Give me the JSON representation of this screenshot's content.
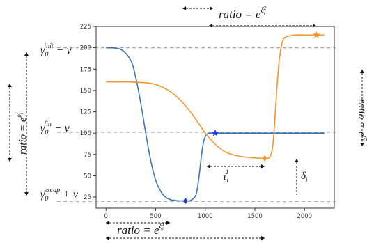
{
  "chart_data": {
    "type": "line",
    "xlim": [
      -100,
      2300
    ],
    "ylim": [
      12,
      225
    ],
    "x_ticks": [
      "0",
      "500",
      "1000",
      "1500",
      "2000"
    ],
    "y_ticks": [
      "25",
      "50",
      "75",
      "100",
      "125",
      "150",
      "175",
      "200",
      "225"
    ],
    "x_tick_values": [
      0,
      500,
      1000,
      1500,
      2000
    ],
    "y_tick_values": [
      25,
      50,
      75,
      100,
      125,
      150,
      175,
      200,
      225
    ],
    "grid": false,
    "reference_lines": [
      200,
      101,
      20
    ],
    "series": [
      {
        "color": "#3b76b6",
        "x": [
          0,
          150,
          250,
          300,
          350,
          400,
          450,
          500,
          550,
          600,
          650,
          700,
          750,
          800,
          850,
          900,
          920,
          940,
          960,
          980,
          1000,
          1020,
          1050,
          1100,
          1200,
          1500,
          1800,
          2000,
          2200
        ],
        "y": [
          200,
          198,
          185,
          165,
          135,
          100,
          68,
          45,
          32,
          25,
          22,
          21,
          20.5,
          20.5,
          21,
          26,
          35,
          52,
          72,
          88,
          96,
          99,
          100,
          100,
          100,
          100,
          100,
          100,
          100
        ]
      },
      {
        "color": "#f5962f",
        "x": [
          0,
          200,
          400,
          500,
          600,
          700,
          800,
          900,
          1000,
          1100,
          1200,
          1300,
          1400,
          1500,
          1600,
          1650,
          1680,
          1700,
          1720,
          1740,
          1760,
          1780,
          1800,
          1850,
          1900,
          2000,
          2200
        ],
        "y": [
          160,
          160,
          159,
          157,
          152,
          144,
          132,
          117,
          100,
          87,
          78,
          74,
          72,
          71,
          70.5,
          72,
          85,
          115,
          150,
          180,
          198,
          208,
          212,
          214,
          215,
          215,
          215
        ]
      }
    ],
    "markers": [
      {
        "x": 800,
        "y": 20.5,
        "color": "#1f3fbf",
        "shape": "diamond"
      },
      {
        "x": 1100,
        "y": 100,
        "color": "#1f33ff",
        "shape": "star"
      },
      {
        "x": 1600,
        "y": 70.5,
        "color": "#f5962f",
        "shape": "diamond"
      },
      {
        "x": 2120,
        "y": 215,
        "color": "#f5962f",
        "shape": "star"
      }
    ],
    "annotations": {
      "gamma_init_main": "γ",
      "gamma_init_sub": "0",
      "gamma_init_sup": "init",
      "gamma_init_rest": " − ν",
      "gamma_fin_main": "γ",
      "gamma_fin_sub": "0",
      "gamma_fin_sup": "fin",
      "gamma_fin_rest": " − ν",
      "gamma_escap_main": "γ",
      "gamma_escap_sub": "0",
      "gamma_escap_sup": "escap",
      "gamma_escap_rest": " + ν",
      "ratio_prefix": "ratio = e",
      "ratio_top_exp": "ξ",
      "ratio_top_exp_sub": "i",
      "ratio_top_exp_sup": "2",
      "ratio_bottom_exp": "ξ",
      "ratio_bottom_exp_sub": "i",
      "ratio_bottom_exp_sup": "1",
      "ratio_left_exp": "ρ",
      "ratio_left_exp_sub": "i",
      "ratio_left_exp_sup": "1",
      "ratio_right_exp": "ρ",
      "ratio_right_exp_sub": "i",
      "ratio_right_exp_sup": "2",
      "tau_main": "τ",
      "tau_sub": "i",
      "tau_sup": "1",
      "delta_main": "δ",
      "delta_sub": "i"
    }
  },
  "colors": {
    "blue": "#3b76b6",
    "orange": "#f5962f",
    "dashed": "#9a9a9a",
    "axis": "#333333"
  }
}
